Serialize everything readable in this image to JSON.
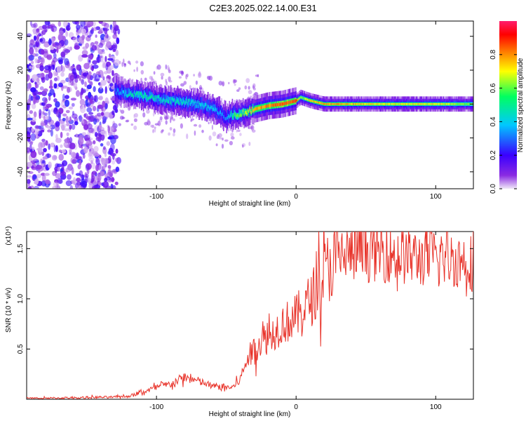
{
  "title": "C2E3.2025.022.14.00.E31",
  "chart_data": [
    {
      "type": "heatmap",
      "xlabel": "Height of straight line (km)",
      "ylabel": "Frequency (Hz)",
      "xlim": [
        -193,
        127
      ],
      "ylim": [
        -50,
        49
      ],
      "x_ticks": [
        -100,
        0,
        100
      ],
      "y_ticks": [
        -40,
        -20,
        0,
        20,
        40
      ],
      "colorbar": {
        "label": "Normalized spectral amplitude",
        "range": [
          0,
          1
        ],
        "ticks": [
          "0.0",
          "0.2",
          "0.4",
          "0.6",
          "0.8"
        ],
        "colors": [
          "#f0e8f8",
          "#8a2be2",
          "#3a00ff",
          "#00c8ff",
          "#00ff60",
          "#ffff00",
          "#ff7800",
          "#ff0000",
          "#ff1e6e"
        ]
      },
      "ridge": {
        "x": [
          -130,
          -120,
          -110,
          -100,
          -90,
          -80,
          -70,
          -60,
          -55,
          -50,
          -45,
          -40,
          -30,
          -20,
          -10,
          0,
          3,
          10,
          20,
          40,
          60,
          80,
          100,
          127
        ],
        "y": [
          8,
          6,
          5,
          3,
          2,
          1,
          0,
          -3,
          -5,
          -8,
          -6,
          -6,
          -3,
          -1,
          0,
          2,
          4,
          2,
          0,
          0,
          0,
          0,
          0,
          0
        ],
        "amplitude": [
          0.3,
          0.45,
          0.5,
          0.45,
          0.45,
          0.45,
          0.4,
          0.4,
          0.35,
          0.3,
          0.55,
          0.6,
          0.75,
          0.8,
          0.85,
          0.85,
          0.6,
          0.75,
          0.8,
          0.75,
          0.7,
          0.7,
          0.7,
          0.6
        ]
      },
      "noise_region": [
        -193,
        -127
      ]
    },
    {
      "type": "line",
      "xlabel": "Height of straight line (km)",
      "ylabel": "SNR (10 * v/v)",
      "y_multiplier": "(x10⁴)",
      "xlim": [
        -193,
        127
      ],
      "ylim": [
        0.0,
        1.67
      ],
      "x_ticks": [
        -100,
        0,
        100
      ],
      "y_ticks": [
        0.5,
        1.0,
        1.5
      ],
      "series": [
        {
          "color": "#e8332a",
          "x": [
            -193,
            -180,
            -160,
            -140,
            -130,
            -120,
            -115,
            -110,
            -100,
            -90,
            -80,
            -75,
            -70,
            -60,
            -50,
            -45,
            -40,
            -35,
            -30,
            -25,
            -20,
            -15,
            -10,
            -5,
            0,
            5,
            10,
            15,
            20,
            25,
            30,
            35,
            40,
            50,
            60,
            70,
            80,
            90,
            100,
            110,
            120,
            127
          ],
          "y": [
            0.01,
            0.01,
            0.015,
            0.02,
            0.02,
            0.03,
            0.05,
            0.07,
            0.12,
            0.15,
            0.22,
            0.2,
            0.18,
            0.13,
            0.12,
            0.12,
            0.2,
            0.4,
            0.5,
            0.58,
            0.62,
            0.68,
            0.75,
            0.78,
            0.82,
            0.9,
            0.98,
            1.1,
            1.25,
            1.35,
            1.42,
            1.45,
            1.45,
            1.46,
            1.47,
            1.44,
            1.42,
            1.4,
            1.41,
            1.4,
            1.38,
            1.37
          ]
        }
      ]
    }
  ]
}
